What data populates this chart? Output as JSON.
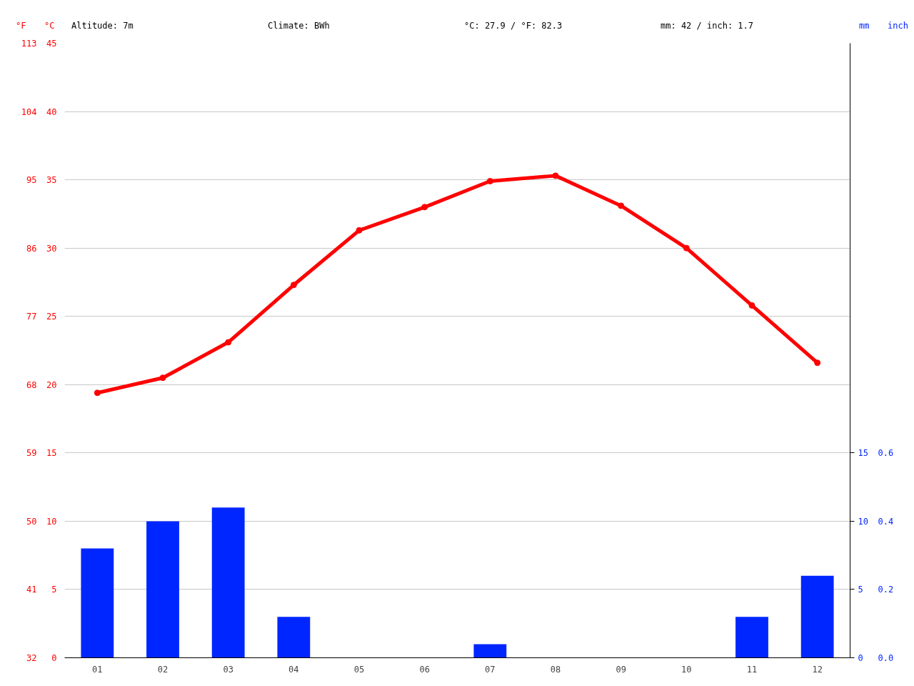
{
  "chart_data": {
    "type": "bar",
    "categories": [
      "01",
      "02",
      "03",
      "04",
      "05",
      "06",
      "07",
      "08",
      "09",
      "10",
      "11",
      "12"
    ],
    "series": [
      {
        "type": "line",
        "color": "#ff0000",
        "values": [
          19.4,
          20.5,
          23.1,
          27.3,
          31.3,
          33.0,
          34.9,
          35.3,
          33.1,
          30.0,
          25.8,
          21.6
        ]
      },
      {
        "color": "#0026ff",
        "values": [
          8,
          10,
          11,
          3,
          0,
          0,
          1,
          0,
          0,
          0,
          3,
          6
        ]
      }
    ],
    "ylabel": "°C",
    "ylim": [
      0,
      45
    ],
    "yticks": [
      0,
      5,
      10,
      15,
      20,
      25,
      30,
      35,
      40,
      45
    ],
    "y2label": "°F",
    "y2lim": [
      32,
      113
    ],
    "y2ticks": [
      32,
      41,
      50,
      59,
      68,
      77,
      86,
      95,
      104,
      113
    ],
    "y3label": "mm",
    "y3lim": [
      0,
      45
    ],
    "y3ticks": [
      0,
      5,
      10,
      15
    ],
    "annotations": [
      "Altitude: 7m",
      "Climate: BWh",
      "°C: 27.9 / °F: 82.3",
      "mm: 42 / inch: 1.7",
      "inch",
      "0.0",
      "0.2",
      "0.4",
      "0.6"
    ],
    "grid": "y",
    "marker": "circle",
    "line_style": "solid"
  }
}
